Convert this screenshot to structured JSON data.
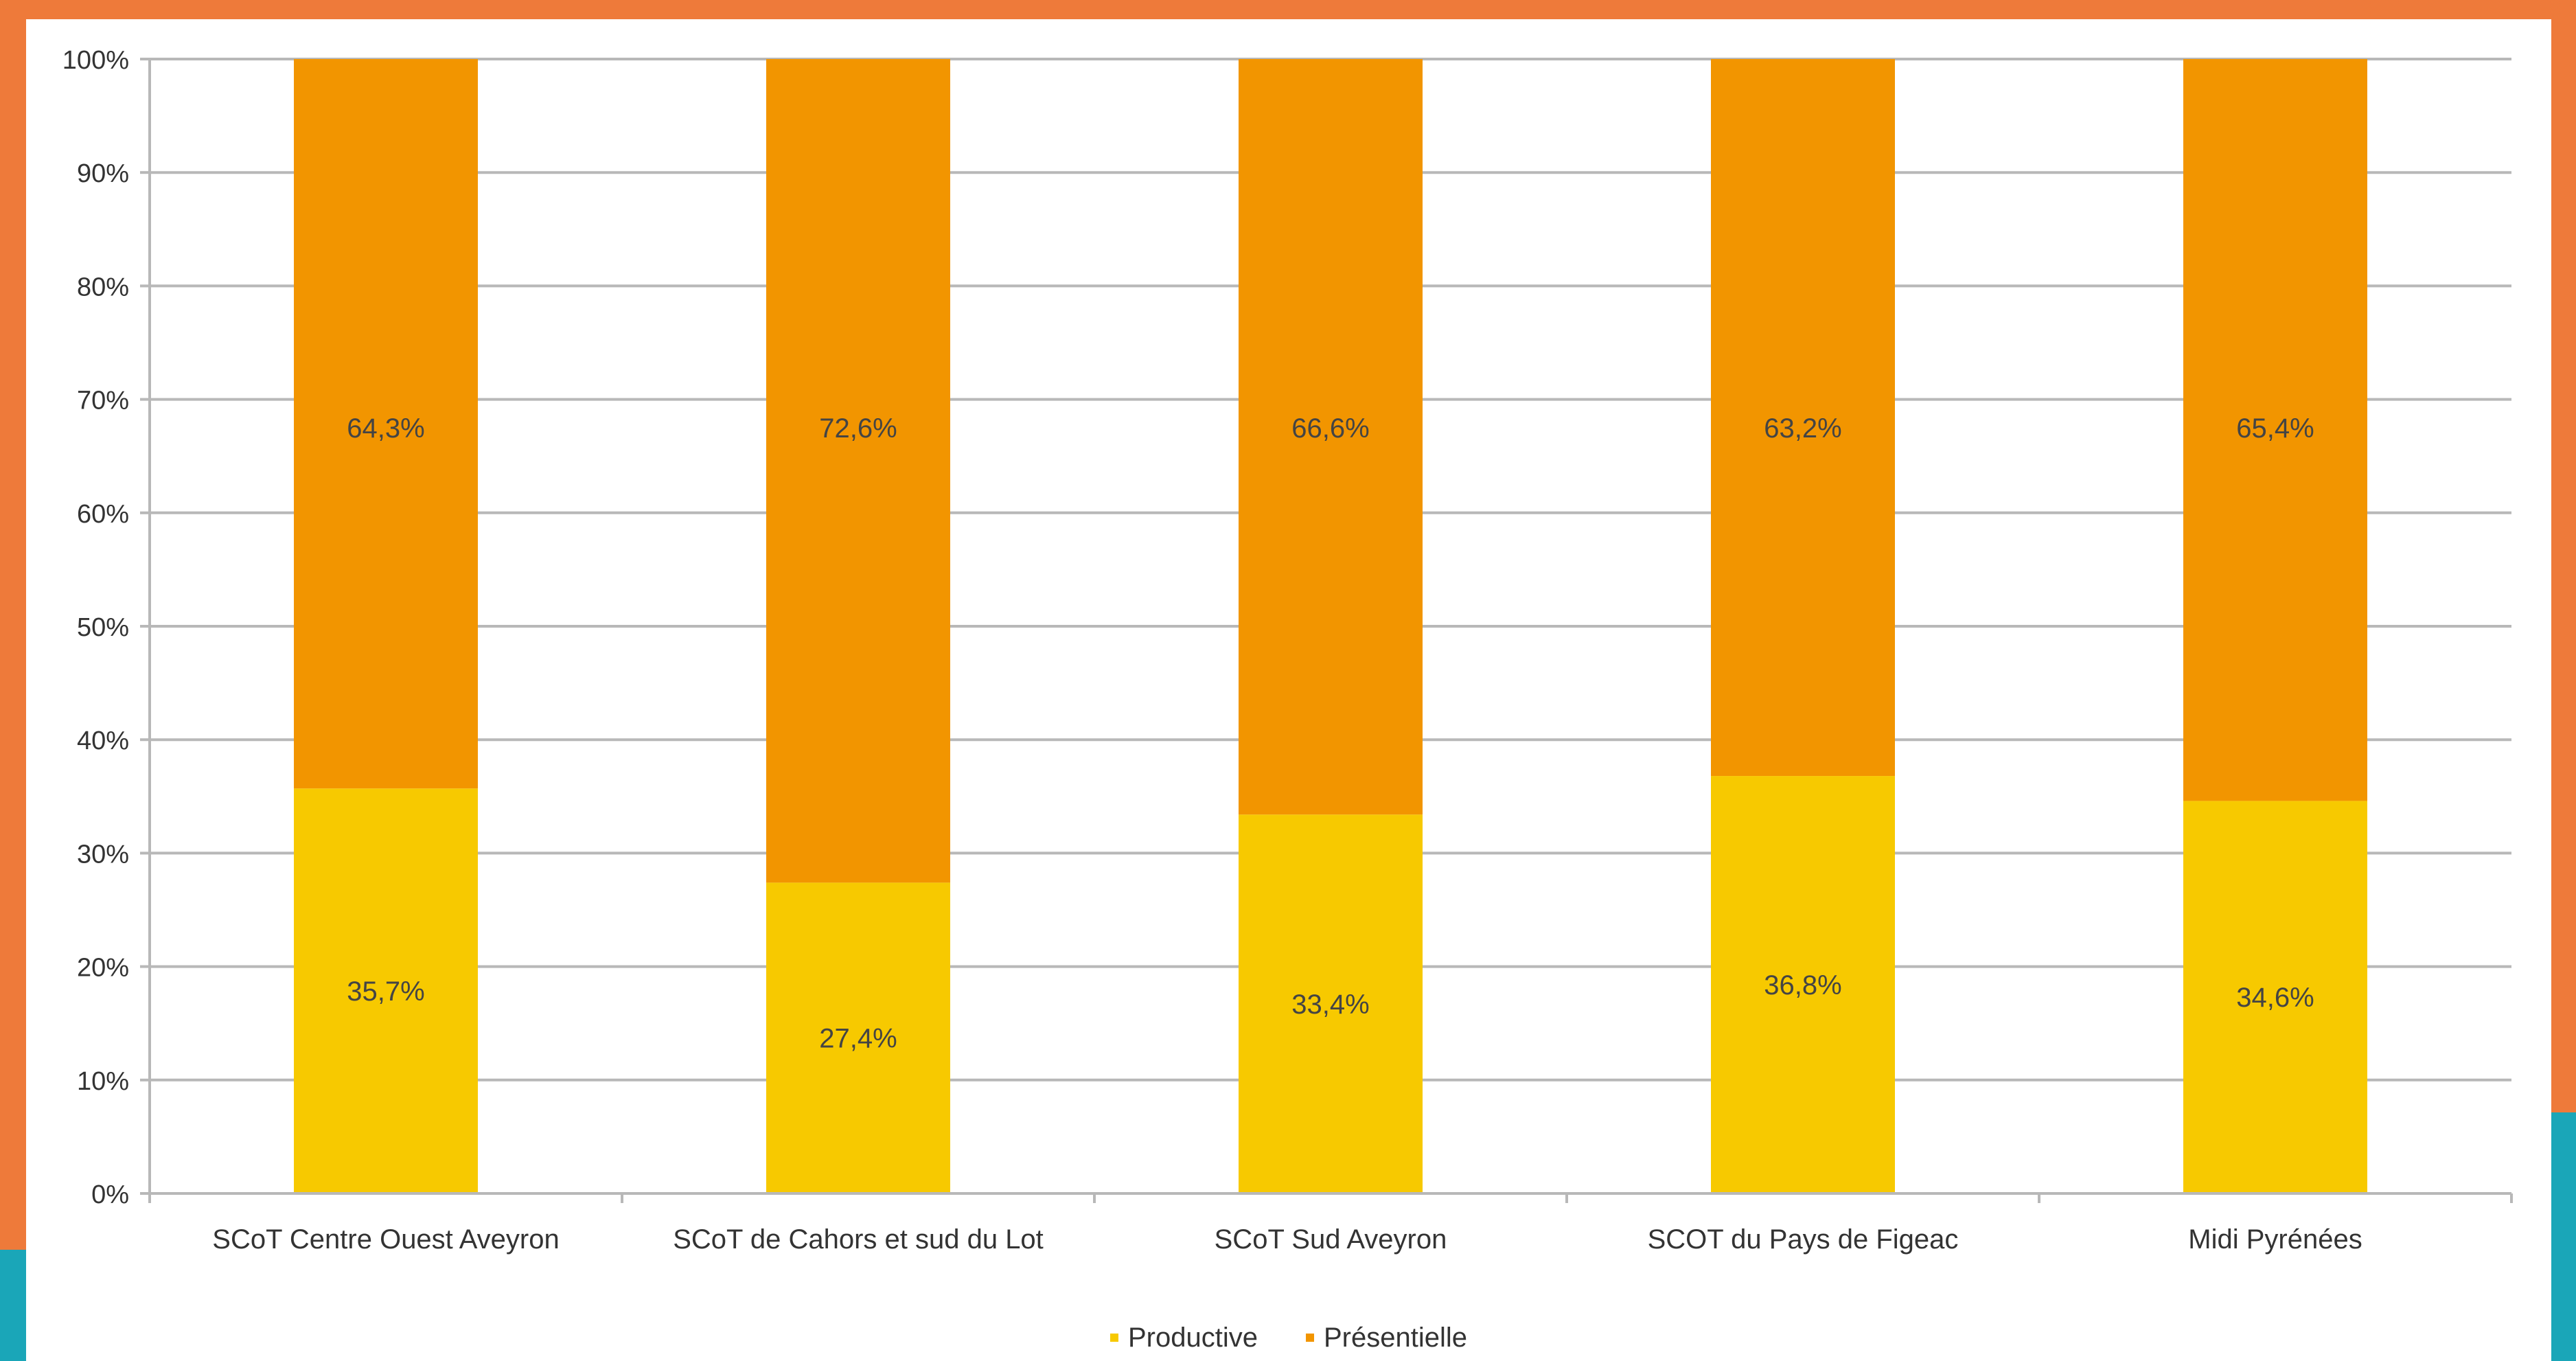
{
  "colors": {
    "frame": "#ee7a3a",
    "frame_accent": "#1aa6b8",
    "productive": "#f7c900",
    "presentielle": "#f29500",
    "gridline": "#b8b8b8",
    "text": "#333333"
  },
  "chart_data": {
    "type": "bar",
    "stacked": true,
    "percent_stacked": true,
    "categories": [
      "SCoT Centre Ouest Aveyron",
      "SCoT de Cahors et sud du Lot",
      "SCoT Sud Aveyron",
      "SCOT du Pays de Figeac",
      "Midi Pyrénées"
    ],
    "series": [
      {
        "name": "Productive",
        "values": [
          35.7,
          27.4,
          33.4,
          36.8,
          34.6
        ],
        "labels": [
          "35,7%",
          "27,4%",
          "33,4%",
          "36,8%",
          "34,6%"
        ],
        "color": "#f7c900"
      },
      {
        "name": "Présentielle",
        "values": [
          64.3,
          72.6,
          66.6,
          63.2,
          65.4
        ],
        "labels": [
          "64,3%",
          "72,6%",
          "66,6%",
          "63,2%",
          "65,4%"
        ],
        "color": "#f29500"
      }
    ],
    "ylim": [
      0,
      100
    ],
    "yticks": [
      "0%",
      "10%",
      "20%",
      "30%",
      "40%",
      "50%",
      "60%",
      "70%",
      "80%",
      "90%",
      "100%"
    ],
    "grid": true,
    "legend_position": "bottom"
  }
}
